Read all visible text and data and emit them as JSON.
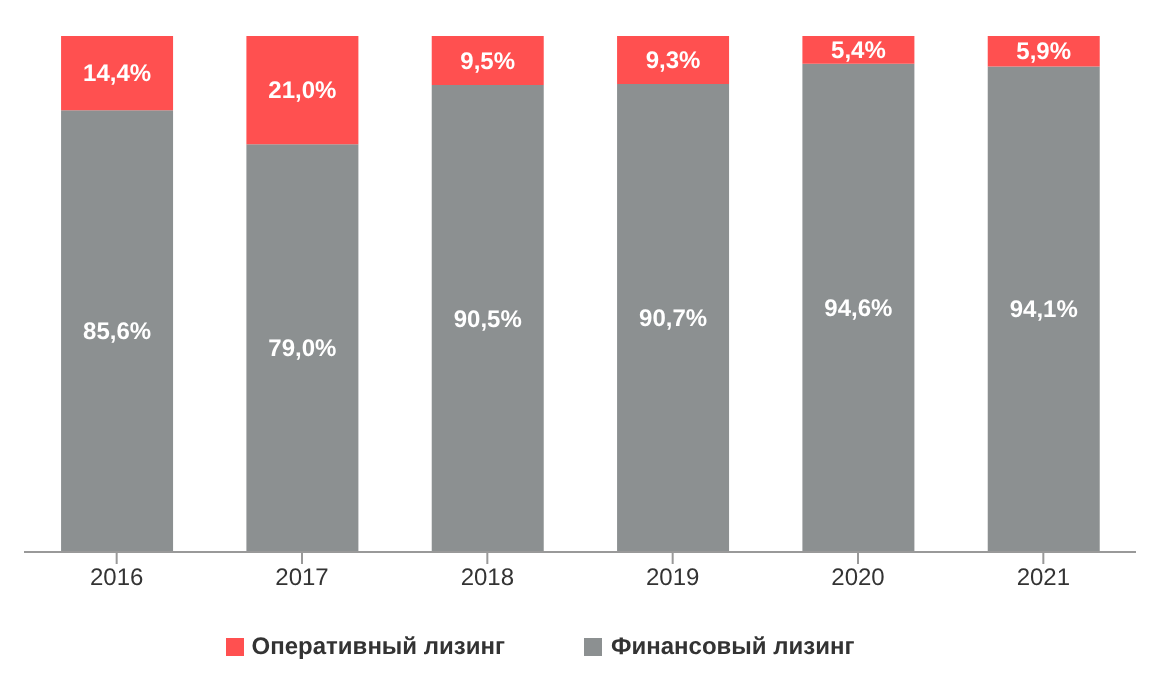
{
  "chart_data": {
    "type": "bar",
    "stacked": true,
    "categories": [
      "2016",
      "2017",
      "2018",
      "2019",
      "2020",
      "2021"
    ],
    "series": [
      {
        "name": "Финансовый лизинг",
        "color": "#8c9091",
        "values": [
          85.6,
          79.0,
          90.5,
          90.7,
          94.6,
          94.1
        ],
        "value_labels": [
          "85,6%",
          "79,0%",
          "90,5%",
          "90,7%",
          "94,6%",
          "94,1%"
        ]
      },
      {
        "name": "Оперативный лизинг",
        "color": "#ff5050",
        "values": [
          14.4,
          21.0,
          9.5,
          9.3,
          5.4,
          5.9
        ],
        "value_labels": [
          "14,4%",
          "21,0%",
          "9,5%",
          "9,3%",
          "5,4%",
          "5,9%"
        ]
      }
    ],
    "legend": "bottom",
    "grid": false
  }
}
